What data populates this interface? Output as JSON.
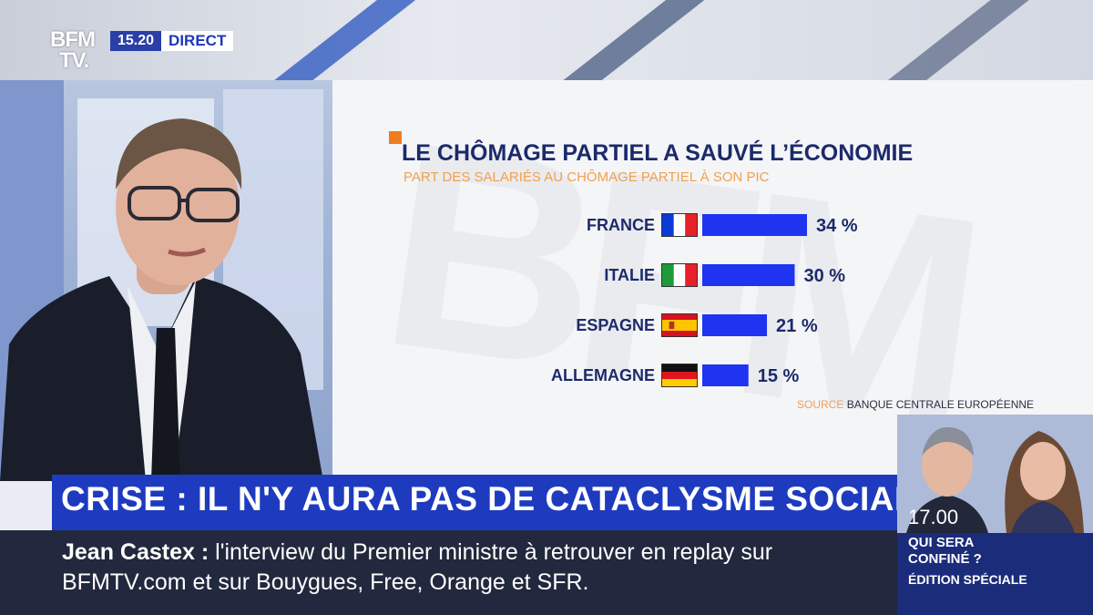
{
  "channel": {
    "logo_text": "BFM TV.",
    "time": "15.20",
    "live_label": "DIRECT"
  },
  "chart_data": {
    "type": "bar",
    "orientation": "horizontal",
    "title": "LE CHÔMAGE PARTIEL A SAUVÉ L’ÉCONOMIE",
    "subtitle": "PART DES SALARIÉS AU CHÔMAGE PARTIEL À SON PIC",
    "categories": [
      "FRANCE",
      "ITALIE",
      "ESPAGNE",
      "ALLEMAGNE"
    ],
    "values": [
      34,
      30,
      21,
      15
    ],
    "value_labels": [
      "34 %",
      "30 %",
      "21 %",
      "15 %"
    ],
    "unit": "%",
    "bar_color": "#1e34f0",
    "flags": [
      "france-flag-icon",
      "italy-flag-icon",
      "spain-flag-icon",
      "germany-flag-icon"
    ],
    "source_label": "SOURCE",
    "source_text": "BANQUE CENTRALE EUROPÉENNE"
  },
  "banner": {
    "headline": "CRISE : IL N'Y AURA PAS DE CATACLYSME SOCIAL"
  },
  "ticker": {
    "name": "Jean Castex :",
    "text": "l'interview du Premier ministre à retrouver en replay sur BFMTV.com et sur Bouygues, Free, Orange et SFR."
  },
  "next_program": {
    "time": "17.00",
    "line1": "QUI SERA",
    "line2": "CONFINÉ ?",
    "line3": "ÉDITION SPÉCIALE"
  },
  "colors": {
    "brand_blue": "#1e3bbf",
    "accent_orange": "#f07c22",
    "title_navy": "#1c2a6b"
  }
}
